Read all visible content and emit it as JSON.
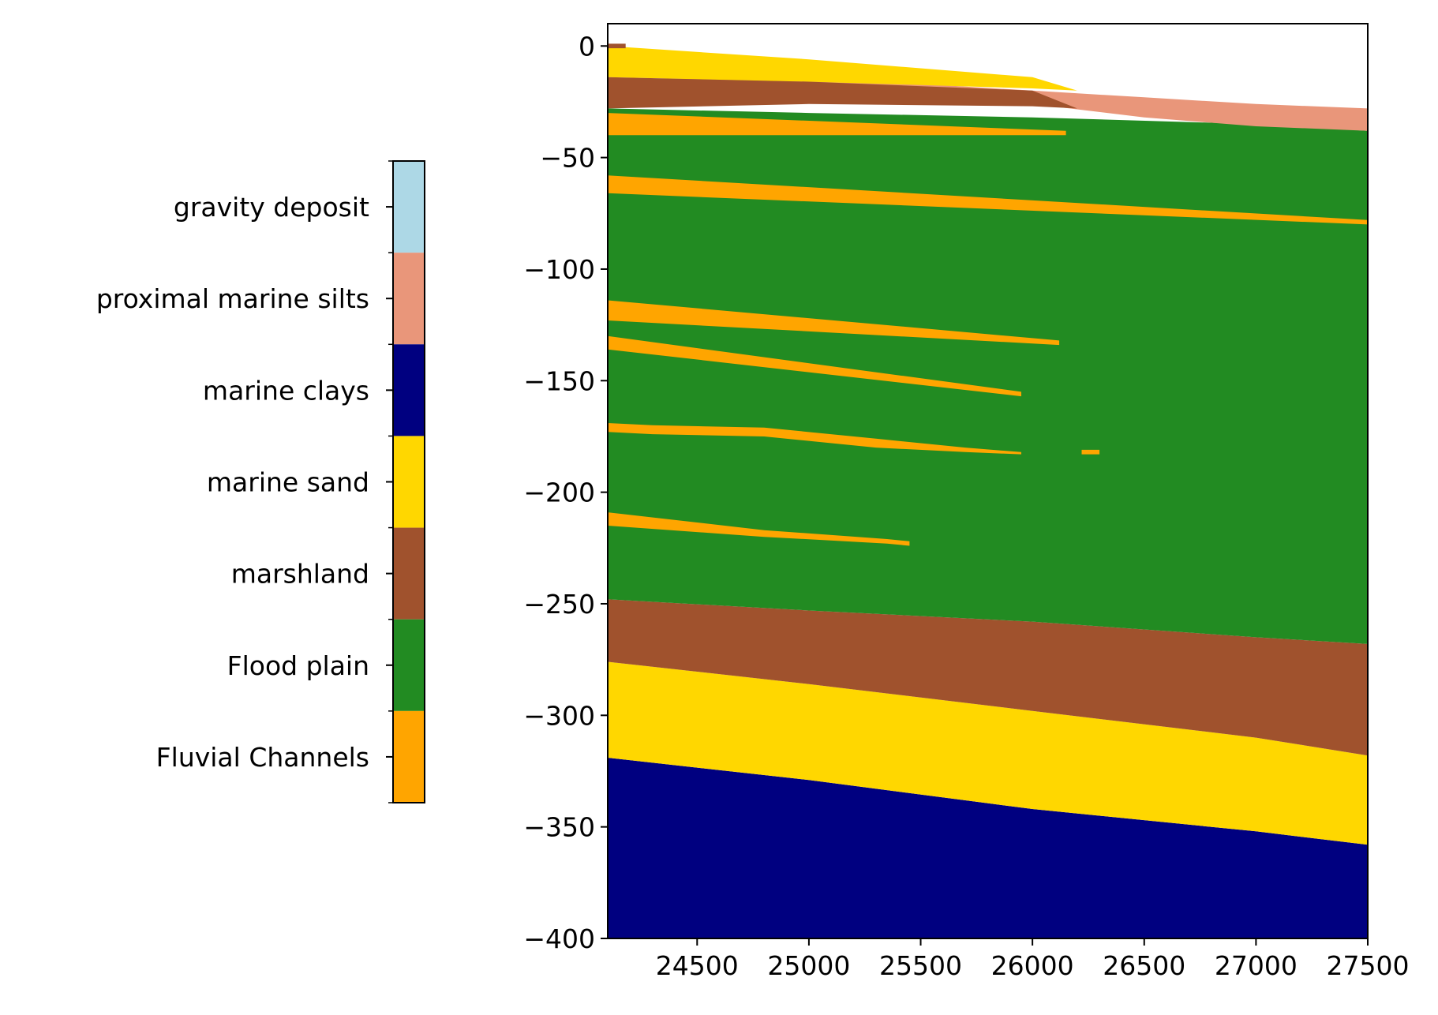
{
  "chart_data": {
    "type": "heatmap",
    "subtype": "stratigraphic cross-section",
    "title": "",
    "xlabel": "",
    "ylabel": "",
    "xlim": [
      24100,
      27500
    ],
    "ylim": [
      -400,
      10
    ],
    "xticks": [
      24500,
      25000,
      25500,
      26000,
      26500,
      27000,
      27500
    ],
    "yticks": [
      0,
      -50,
      -100,
      -150,
      -200,
      -250,
      -300,
      -350,
      -400
    ],
    "xtick_labels": [
      "24500",
      "25000",
      "25500",
      "26000",
      "26500",
      "27000",
      "27500"
    ],
    "ytick_labels": [
      "0",
      "−50",
      "−100",
      "−150",
      "−200",
      "−250",
      "−300",
      "−350",
      "−400"
    ],
    "colorbar": {
      "categories": [
        {
          "label": "gravity deposit",
          "color": "#add8e6"
        },
        {
          "label": "proximal marine silts",
          "color": "#e9967a"
        },
        {
          "label": "marine clays",
          "color": "#000080"
        },
        {
          "label": "marine sand",
          "color": "#ffd700"
        },
        {
          "label": "marshland",
          "color": "#a0522d"
        },
        {
          "label": "Flood plain",
          "color": "#228b22"
        },
        {
          "label": "Fluvial Channels",
          "color": "#ffa500"
        }
      ]
    },
    "layers": [
      {
        "facies": "marine clays",
        "x": [
          24100,
          25000,
          26000,
          27000,
          27500
        ],
        "top": [
          -319,
          -329,
          -342,
          -352,
          -358
        ],
        "bottom": [
          -400,
          -400,
          -400,
          -400,
          -400
        ]
      },
      {
        "facies": "marine sand",
        "x": [
          24100,
          25000,
          26000,
          27000,
          27500
        ],
        "top": [
          -276,
          -286,
          -298,
          -310,
          -318
        ],
        "bottom": [
          -319,
          -329,
          -342,
          -352,
          -358
        ]
      },
      {
        "facies": "marshland",
        "x": [
          24100,
          25000,
          26000,
          27000,
          27500
        ],
        "top": [
          -248,
          -253,
          -258,
          -265,
          -268
        ],
        "bottom": [
          -276,
          -286,
          -298,
          -310,
          -318
        ]
      },
      {
        "facies": "Flood plain",
        "x": [
          24100,
          25000,
          26000,
          27000,
          27500
        ],
        "top": [
          -28,
          -30,
          -32,
          -35,
          -38
        ],
        "bottom": [
          -248,
          -253,
          -258,
          -265,
          -268
        ]
      },
      {
        "facies": "proximal marine silts",
        "x": [
          24100,
          25000,
          26000,
          26500,
          27000,
          27500
        ],
        "top": [
          -15,
          -14,
          -20,
          -23,
          -26,
          -28
        ],
        "bottom": [
          -15,
          -17,
          -26,
          -32,
          -36,
          -38
        ]
      },
      {
        "facies": "marine sand",
        "x": [
          24100,
          25000,
          26000,
          26200
        ],
        "top": [
          0,
          -6,
          -14,
          -20
        ],
        "bottom": [
          -14,
          -16,
          -19,
          -20
        ]
      },
      {
        "facies": "marshland",
        "x": [
          24100,
          25000,
          26000,
          26200
        ],
        "top": [
          -14,
          -16,
          -20,
          -28
        ],
        "bottom": [
          -28,
          -26,
          -27,
          -28
        ]
      },
      {
        "facies": "marshland",
        "x": [
          24100,
          24180
        ],
        "top": [
          1,
          1
        ],
        "bottom": [
          -1,
          -1
        ]
      }
    ],
    "channels": [
      {
        "x": [
          24100,
          26150
        ],
        "top": [
          -30,
          -38
        ],
        "bottom": [
          -40,
          -40
        ]
      },
      {
        "x": [
          24100,
          27500
        ],
        "top": [
          -58,
          -78
        ],
        "bottom": [
          -66,
          -80
        ]
      },
      {
        "x": [
          24100,
          26120
        ],
        "top": [
          -114,
          -132
        ],
        "bottom": [
          -123,
          -134
        ]
      },
      {
        "x": [
          24100,
          25950
        ],
        "top": [
          -130,
          -155
        ],
        "bottom": [
          -136,
          -157
        ]
      },
      {
        "x": [
          24100,
          24300,
          24800,
          25300,
          25700,
          25950
        ],
        "top": [
          -169,
          -170,
          -171,
          -176,
          -180,
          -182
        ],
        "bottom": [
          -173,
          -174,
          -175,
          -180,
          -182,
          -183
        ]
      },
      {
        "x": [
          26220,
          26300
        ],
        "top": [
          -181,
          -181
        ],
        "bottom": [
          -183,
          -183
        ]
      },
      {
        "x": [
          24100,
          24800,
          25350,
          25450
        ],
        "top": [
          -209,
          -217,
          -221,
          -222
        ],
        "bottom": [
          -215,
          -220,
          -223,
          -224
        ]
      }
    ]
  }
}
